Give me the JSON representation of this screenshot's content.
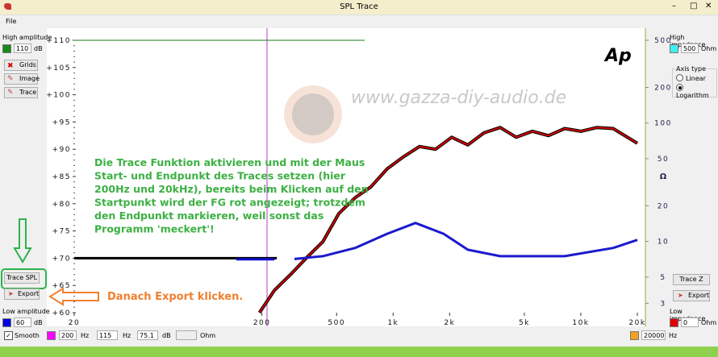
{
  "window": {
    "title": "SPL Trace",
    "menu": [
      "File"
    ]
  },
  "left_panel": {
    "high_amplitude_label": "High amplitude",
    "high_amplitude": "110",
    "high_unit": "dB",
    "buttons": [
      "Grids",
      "Image",
      "Trace"
    ],
    "trace_spl": "Trace SPL",
    "export": "Export",
    "low_amplitude_label": "Low amplitude",
    "low_amplitude": "60",
    "low_unit": "dB"
  },
  "right_panel": {
    "high_impedance_label": "High impedance",
    "high_impedance": "500",
    "high_unit": "Ohm",
    "axis_type_label": "Axis type",
    "axis_options": [
      "Linear",
      "Logarithm"
    ],
    "selected_index": 1,
    "trace_z": "Trace Z",
    "export": "Export",
    "low_impedance_label": "Low impedance",
    "low_impedance": "0",
    "low_unit": "Ohm"
  },
  "bottom_bar": {
    "smooth": "Smooth",
    "f_low": "200",
    "f_low_unit": "Hz",
    "f_mark": "115",
    "f_mark_unit": "Hz",
    "level": "75.1",
    "level_unit": "dB",
    "ohm_unit": "Ohm",
    "f_high": "20000",
    "f_high_unit": "Hz"
  },
  "chart_data": {
    "type": "line",
    "x_log": true,
    "y2_log": true,
    "watermark": "www.gazza-diy-audio.de",
    "logo": "Ap",
    "annotation": [
      "Die Trace Funktion aktivieren und mit der Maus",
      "Start- und Endpunkt des Traces setzen (hier",
      "200Hz und 20kHz), bereits beim Klicken auf den",
      "Startpunkt wird der FG rot angezeigt; trotzdem",
      "den Endpunkt markieren, weil sonst das",
      "Programm 'meckert'!"
    ],
    "callout": "Danach Export klicken.",
    "y2_label": "Ω",
    "xlim": [
      20,
      20000
    ],
    "xticks": [
      20,
      200,
      500,
      {
        "value": 1000,
        "label": "1k"
      },
      {
        "value": 2000,
        "label": "2k"
      },
      {
        "value": 5000,
        "label": "5k"
      },
      {
        "value": 10000,
        "label": "10k"
      },
      {
        "value": 20000,
        "label": "20k"
      }
    ],
    "ylim": [
      60,
      110
    ],
    "yticks": [
      {
        "value": 110,
        "label": "+110"
      },
      {
        "value": 105,
        "label": "+105"
      },
      {
        "value": 100,
        "label": "+100"
      },
      {
        "value": 95,
        "label": "+95"
      },
      {
        "value": 90,
        "label": "+90"
      },
      {
        "value": 85,
        "label": "+85"
      },
      {
        "value": 80,
        "label": "+80"
      },
      {
        "value": 75,
        "label": "+75"
      },
      {
        "value": 70,
        "label": "+70"
      },
      {
        "value": 65,
        "label": "+65"
      },
      {
        "value": 60,
        "label": "+60"
      }
    ],
    "y2lim": [
      2.5,
      500
    ],
    "y2ticks": [
      500,
      200,
      100,
      50,
      20,
      10,
      5,
      3
    ],
    "series": [
      {
        "color": "#000000",
        "x": [
          20,
          240
        ],
        "values": [
          70,
          70
        ]
      },
      {
        "color": "#1010cc",
        "x": [
          146,
          233
        ],
        "values": [
          69.8,
          69.8
        ]
      },
      {
        "color": "#d40000",
        "outline": "#000000",
        "x": [
          194,
          233,
          284,
          346,
          422,
          514,
          627,
          762,
          929,
          1133,
          1381,
          1683,
          2052,
          2501,
          3049,
          3717,
          4530,
          5522,
          6730,
          8204,
          10000,
          12190,
          14860,
          18110,
          20000
        ],
        "values": [
          60,
          64.1,
          67,
          70.1,
          73,
          78.2,
          81.1,
          83.1,
          86.4,
          88.6,
          90.5,
          90,
          92.2,
          90.8,
          93,
          94,
          92.2,
          93.3,
          92.5,
          93.8,
          93.3,
          94,
          93.8,
          92,
          91.1
        ]
      },
      {
        "color": "#1a1acc",
        "axis": "y2",
        "x": [
          298,
          422,
          627,
          929,
          1315,
          1858,
          2501,
          3717,
          8204,
          14860,
          20000
        ],
        "values": [
          7.1,
          7.5,
          8.8,
          11.6,
          14.3,
          11.6,
          8.5,
          7.5,
          7.5,
          8.8,
          10.3
        ]
      }
    ]
  }
}
